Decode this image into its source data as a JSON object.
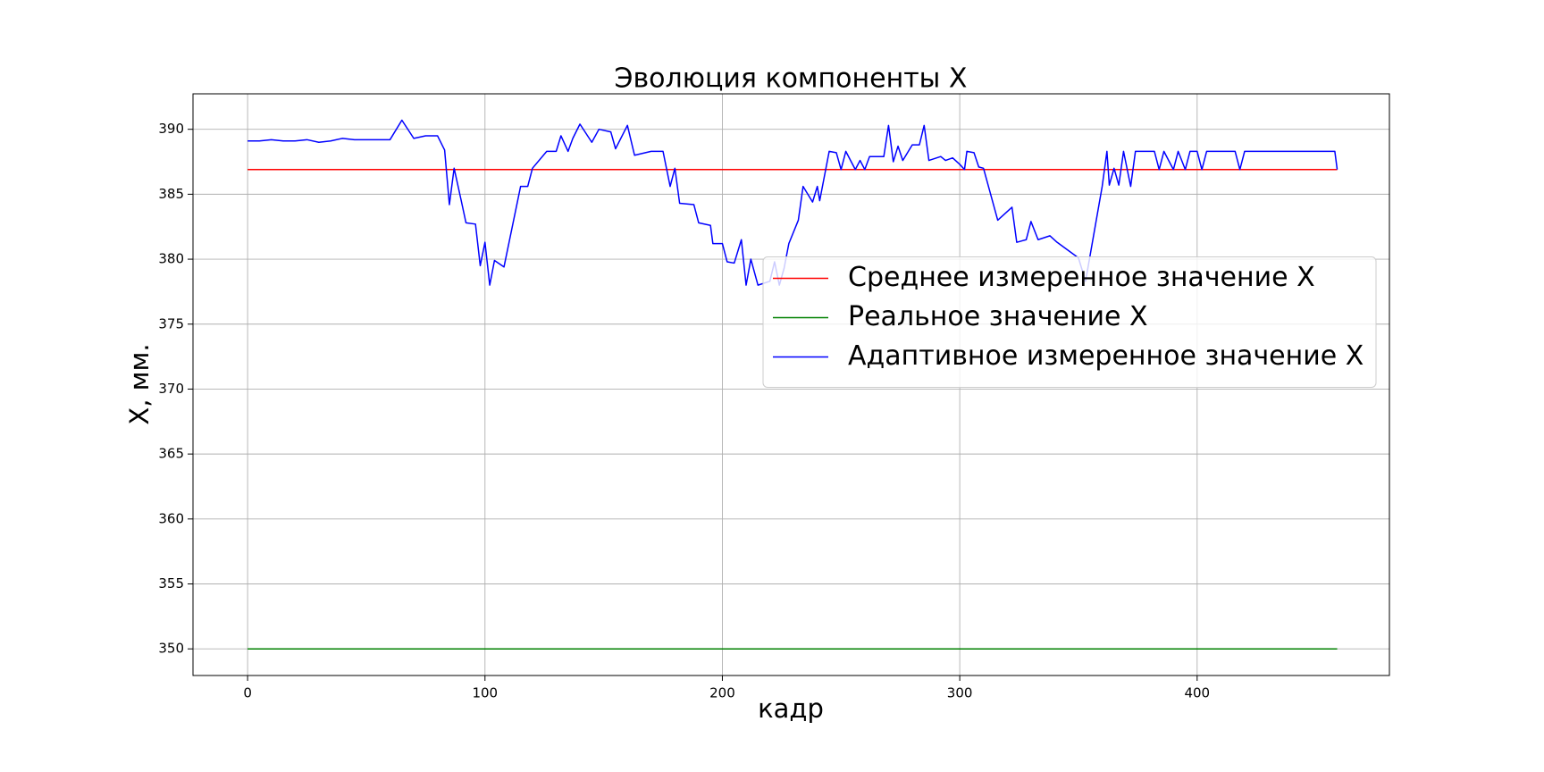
{
  "chart_data": {
    "type": "line",
    "title": "Эволюция компоненты X",
    "xlabel": "кадр",
    "ylabel": "X, мм.",
    "xlim": [
      -23,
      481
    ],
    "ylim": [
      347.95,
      392.73
    ],
    "xticks": [
      0,
      100,
      200,
      300,
      400
    ],
    "yticks": [
      350,
      355,
      360,
      365,
      370,
      375,
      380,
      385,
      390
    ],
    "grid": true,
    "legend": "center right",
    "series": [
      {
        "name": "Среднее измеренное значение X",
        "color": "#ff0000",
        "x": [
          0,
          459
        ],
        "values": [
          386.9,
          386.9
        ]
      },
      {
        "name": "Реальное значение X",
        "color": "#008000",
        "x": [
          0,
          459
        ],
        "values": [
          350,
          350
        ]
      },
      {
        "name": "Адаптивное измеренное значение X",
        "color": "#0000ff",
        "x": [
          0,
          5,
          10,
          15,
          20,
          25,
          30,
          35,
          40,
          45,
          50,
          55,
          60,
          65,
          70,
          75,
          80,
          83,
          85,
          87,
          90,
          92,
          96,
          98,
          100,
          102,
          104,
          108,
          115,
          118,
          120,
          126,
          130,
          132,
          135,
          137,
          140,
          145,
          148,
          153,
          155,
          160,
          163,
          170,
          175,
          178,
          180,
          182,
          188,
          190,
          195,
          196,
          200,
          202,
          205,
          208,
          210,
          212,
          215,
          220,
          222,
          224,
          226,
          228,
          232,
          234,
          238,
          240,
          241,
          245,
          248,
          250,
          252,
          256,
          258,
          260,
          262,
          268,
          270,
          272,
          274,
          276,
          280,
          283,
          285,
          287,
          292,
          294,
          297,
          300,
          302,
          303,
          306,
          308,
          310,
          316,
          322,
          324,
          328,
          330,
          333,
          338,
          341,
          350,
          353,
          360,
          362,
          363,
          365,
          367,
          369,
          372,
          374,
          378,
          382,
          384,
          386,
          390,
          392,
          395,
          397,
          400,
          402,
          404,
          412,
          416,
          418,
          420,
          440,
          455,
          458,
          459
        ],
        "values": [
          389.1,
          389.1,
          389.2,
          389.1,
          389.1,
          389.2,
          389.0,
          389.1,
          389.3,
          389.2,
          389.2,
          389.2,
          389.2,
          390.7,
          389.3,
          389.5,
          389.5,
          388.4,
          384.2,
          387.0,
          384.5,
          382.8,
          382.7,
          379.5,
          381.3,
          378.0,
          379.9,
          379.4,
          385.6,
          385.6,
          387.0,
          388.3,
          388.3,
          389.5,
          388.3,
          389.3,
          390.4,
          389.0,
          390.0,
          389.8,
          388.5,
          390.3,
          388.0,
          388.3,
          388.3,
          385.6,
          387.0,
          384.3,
          384.2,
          382.8,
          382.6,
          381.2,
          381.2,
          379.8,
          379.7,
          381.5,
          378.0,
          380.0,
          378.0,
          378.3,
          379.8,
          378.0,
          379.3,
          381.2,
          383.0,
          385.6,
          384.4,
          385.6,
          384.5,
          388.3,
          388.2,
          386.9,
          388.3,
          386.9,
          387.6,
          386.9,
          387.9,
          387.9,
          390.3,
          387.5,
          388.7,
          387.6,
          388.8,
          388.8,
          390.3,
          387.6,
          387.9,
          387.6,
          387.8,
          387.3,
          386.9,
          388.3,
          388.2,
          387.1,
          387.0,
          383.0,
          384.0,
          381.3,
          381.5,
          382.9,
          381.5,
          381.8,
          381.3,
          380.1,
          378.3,
          385.6,
          388.3,
          385.7,
          387.0,
          385.7,
          388.3,
          385.6,
          388.3,
          388.3,
          388.3,
          386.9,
          388.3,
          386.9,
          388.3,
          386.9,
          388.3,
          388.3,
          386.9,
          388.3,
          388.3,
          388.3,
          386.9,
          388.3,
          388.3,
          388.3,
          388.3,
          386.9
        ]
      }
    ]
  }
}
